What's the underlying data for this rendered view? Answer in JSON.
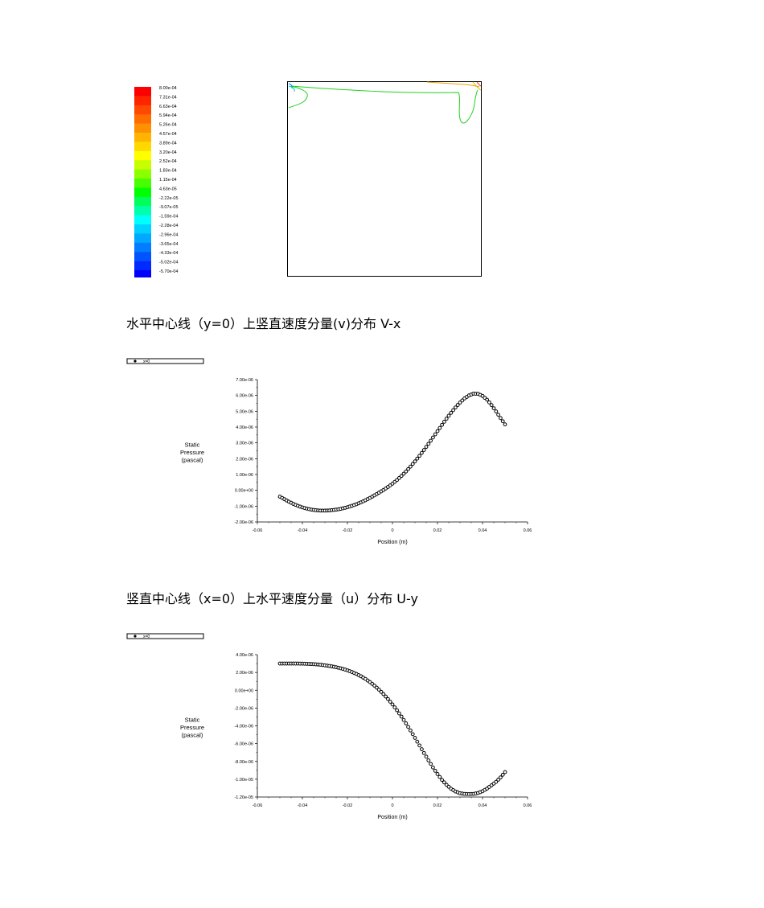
{
  "contour": {
    "colorbar_labels": [
      "8.00e-04",
      "7.31e-04",
      "6.63e-04",
      "5.94e-04",
      "5.26e-04",
      "4.57e-04",
      "3.89e-04",
      "3.20e-04",
      "2.52e-04",
      "1.83e-04",
      "1.15e-04",
      "4.63e-05",
      "-2.22e-05",
      "-9.07e-05",
      "-1.59e-04",
      "-2.28e-04",
      "-2.96e-04",
      "-3.65e-04",
      "-4.33e-04",
      "-5.02e-04",
      "-5.70e-04"
    ],
    "colorbar_colors": [
      "#ff0000",
      "#ff2400",
      "#ff4800",
      "#ff6c00",
      "#ff9000",
      "#ffb400",
      "#ffd800",
      "#ffff00",
      "#c8ff00",
      "#8cff00",
      "#46ff00",
      "#00ff00",
      "#00ff5a",
      "#00ffaa",
      "#00ffff",
      "#00d2ff",
      "#00a8ff",
      "#007eff",
      "#0054ff",
      "#002aff",
      "#0000ff"
    ]
  },
  "captions": {
    "v_x": "水平中心线（y=0）上竖直速度分量(v)分布 V-x",
    "u_y": "竖直中心线（x=0）上水平速度分量（u）分布 U-y"
  },
  "chart_data": [
    {
      "type": "scatter",
      "legend_label": "x=0",
      "xlabel": "Position (m)",
      "ylabel": "Static Pressure (pascal)",
      "ylabel_lines": [
        "Static",
        "Pressure",
        "(pascal)"
      ],
      "xlim": [
        -0.06,
        0.06
      ],
      "ylim": [
        -2e-06,
        7e-06
      ],
      "xticks": [
        -0.06,
        -0.04,
        -0.02,
        0,
        0.02,
        0.04,
        0.06
      ],
      "xtick_labels": [
        "-0.06",
        "-0.04",
        "-0.02",
        "0",
        "0.02",
        "0.04",
        "0.06"
      ],
      "yticks": [
        -2e-06,
        -1e-06,
        0,
        1e-06,
        2e-06,
        3e-06,
        4e-06,
        5e-06,
        6e-06,
        7e-06
      ],
      "ytick_labels": [
        "-2.00e-06",
        "-1.00e-06",
        "0.00e+00",
        "1.00e-06",
        "2.00e-06",
        "3.00e-06",
        "4.00e-06",
        "5.00e-06",
        "6.00e-06",
        "7.00e-06"
      ],
      "x": [
        -0.05,
        -0.048,
        -0.046,
        -0.044,
        -0.042,
        -0.04,
        -0.038,
        -0.036,
        -0.034,
        -0.032,
        -0.03,
        -0.028,
        -0.026,
        -0.024,
        -0.022,
        -0.02,
        -0.018,
        -0.016,
        -0.014,
        -0.012,
        -0.01,
        -0.008,
        -0.006,
        -0.004,
        -0.002,
        0,
        0.002,
        0.004,
        0.006,
        0.008,
        0.01,
        0.012,
        0.014,
        0.016,
        0.018,
        0.02,
        0.022,
        0.024,
        0.026,
        0.028,
        0.03,
        0.032,
        0.034,
        0.036,
        0.038,
        0.04,
        0.042,
        0.044,
        0.046,
        0.048,
        0.05
      ],
      "y": [
        -4e-07,
        -5.6e-07,
        -7.2e-07,
        -8.6e-07,
        -9.8e-07,
        -1.08e-06,
        -1.16e-06,
        -1.22e-06,
        -1.26e-06,
        -1.28e-06,
        -1.28e-06,
        -1.27e-06,
        -1.24e-06,
        -1.2e-06,
        -1.14e-06,
        -1.07e-06,
        -9.8e-07,
        -8.8e-07,
        -7.6e-07,
        -6.3e-07,
        -4.8e-07,
        -3.2e-07,
        -1.5e-07,
        2e-08,
        2.1e-07,
        4.2e-07,
        6.5e-07,
        9.1e-07,
        1.19e-06,
        1.5e-06,
        1.83e-06,
        2.18e-06,
        2.55e-06,
        2.94e-06,
        3.34e-06,
        3.74e-06,
        4.14e-06,
        4.53e-06,
        4.9e-06,
        5.24e-06,
        5.55e-06,
        5.81e-06,
        6e-06,
        6.11e-06,
        6.1e-06,
        5.97e-06,
        5.73e-06,
        5.39e-06,
        4.99e-06,
        4.57e-06,
        4.17e-06
      ]
    },
    {
      "type": "scatter",
      "legend_label": "x=0",
      "xlabel": "Position (m)",
      "ylabel": "Static Pressure (pascal)",
      "ylabel_lines": [
        "Static",
        "Pressure",
        "(pascal)"
      ],
      "xlim": [
        -0.06,
        0.06
      ],
      "ylim": [
        -1.2e-05,
        4e-06
      ],
      "xticks": [
        -0.06,
        -0.04,
        -0.02,
        0,
        0.02,
        0.04,
        0.06
      ],
      "xtick_labels": [
        "-0.06",
        "-0.04",
        "-0.02",
        "0",
        "0.02",
        "0.04",
        "0.06"
      ],
      "yticks": [
        -1.2e-05,
        -1e-05,
        -8e-06,
        -6e-06,
        -4e-06,
        -2e-06,
        0,
        2e-06,
        4e-06
      ],
      "ytick_labels": [
        "-1.20e-05",
        "-1.00e-05",
        "-8.00e-06",
        "-6.00e-06",
        "-4.00e-06",
        "-2.00e-06",
        "0.00e+00",
        "2.00e-06",
        "4.00e-06"
      ],
      "x": [
        -0.05,
        -0.048,
        -0.046,
        -0.044,
        -0.042,
        -0.04,
        -0.038,
        -0.036,
        -0.034,
        -0.032,
        -0.03,
        -0.028,
        -0.026,
        -0.024,
        -0.022,
        -0.02,
        -0.018,
        -0.016,
        -0.014,
        -0.012,
        -0.01,
        -0.008,
        -0.006,
        -0.004,
        -0.002,
        0,
        0.002,
        0.004,
        0.006,
        0.008,
        0.01,
        0.012,
        0.014,
        0.016,
        0.018,
        0.02,
        0.022,
        0.024,
        0.026,
        0.028,
        0.03,
        0.032,
        0.034,
        0.036,
        0.038,
        0.04,
        0.042,
        0.044,
        0.046,
        0.048,
        0.05
      ],
      "y": [
        3e-06,
        3e-06,
        3e-06,
        3e-06,
        3e-06,
        2.99e-06,
        2.97e-06,
        2.95e-06,
        2.91e-06,
        2.87e-06,
        2.8e-06,
        2.73e-06,
        2.64e-06,
        2.53e-06,
        2.4e-06,
        2.24e-06,
        2.05e-06,
        1.83e-06,
        1.57e-06,
        1.27e-06,
        9.2e-07,
        5.2e-07,
        7e-08,
        -4.3e-07,
        -9.8e-07,
        -1.59e-06,
        -2.25e-06,
        -2.96e-06,
        -3.72e-06,
        -4.52e-06,
        -5.35e-06,
        -6.2e-06,
        -7.05e-06,
        -7.88e-06,
        -8.68e-06,
        -9.42e-06,
        -1.008e-05,
        -1.063e-05,
        -1.107e-05,
        -1.138e-05,
        -1.157e-05,
        -1.165e-05,
        -1.167e-05,
        -1.165e-05,
        -1.155e-05,
        -1.135e-05,
        -1.105e-05,
        -1.068e-05,
        -1.03e-05,
        -9.8e-06,
        -9.2e-06
      ]
    }
  ]
}
